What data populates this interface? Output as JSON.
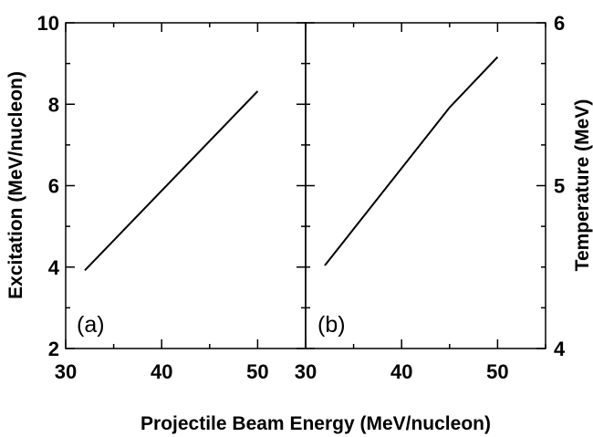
{
  "chart_data": [
    {
      "type": "line",
      "panel_label": "(a)",
      "x": [
        32,
        50
      ],
      "series": [
        {
          "values": [
            3.92,
            8.32
          ]
        }
      ],
      "xlabel": "Projectile Beam Energy (MeV/nucleon)",
      "ylabel": "Excitation (MeV/nucleon)",
      "xlim": [
        30,
        55
      ],
      "ylim": [
        2,
        10
      ],
      "xticks": [
        "30",
        "40",
        "50"
      ],
      "yticks": [
        "2",
        "4",
        "6",
        "8",
        "10"
      ],
      "grid": false,
      "color": "#000000"
    },
    {
      "type": "line",
      "panel_label": "(b)",
      "x": [
        32,
        45,
        50
      ],
      "series": [
        {
          "values": [
            4.51,
            5.48,
            5.79
          ]
        }
      ],
      "xlabel": "Projectile Beam Energy (MeV/nucleon)",
      "ylabel": "Temperature (MeV)",
      "xlim": [
        30,
        55
      ],
      "ylim": [
        4,
        6
      ],
      "xticks": [
        "30",
        "40",
        "50"
      ],
      "yticks": [
        "4",
        "5",
        "6"
      ],
      "grid": false,
      "color": "#000000"
    }
  ]
}
